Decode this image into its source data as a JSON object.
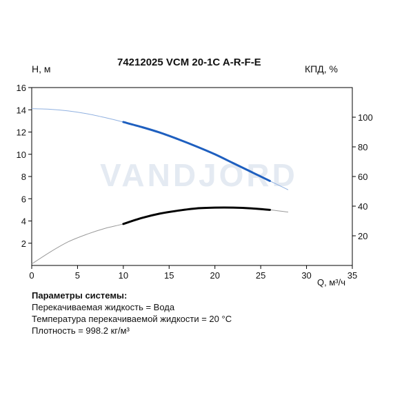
{
  "chart_data": {
    "type": "line",
    "title": "74212025 VCM 20-1C A-R-F-E",
    "ylabel": "H, м",
    "ylabel_right": "КПД, %",
    "xlabel": "Q, м³/ч",
    "xlim": [
      0,
      35
    ],
    "ylim": [
      0,
      16
    ],
    "ylim_right": [
      0,
      120
    ],
    "x_ticks": [
      0,
      5,
      10,
      15,
      20,
      25,
      30,
      35
    ],
    "y_ticks": [
      2,
      4,
      6,
      8,
      10,
      12,
      14,
      16
    ],
    "y_right_ticks": [
      20,
      40,
      60,
      80,
      100
    ],
    "watermark": "VANDJORD",
    "series": [
      {
        "name": "H",
        "axis": "left",
        "color": "#1e5fbf",
        "x": [
          0,
          2,
          4,
          6,
          8,
          10,
          12,
          14,
          16,
          18,
          20,
          22,
          24,
          26,
          28
        ],
        "values": [
          14.1,
          14.05,
          13.9,
          13.65,
          13.3,
          12.9,
          12.45,
          11.95,
          11.35,
          10.7,
          10.0,
          9.2,
          8.4,
          7.6,
          6.8
        ],
        "highlight_range": [
          10,
          26
        ]
      },
      {
        "name": "КПД",
        "axis": "right",
        "color": "#000000",
        "x": [
          0,
          2,
          4,
          6,
          8,
          10,
          12,
          14,
          16,
          18,
          20,
          22,
          24,
          26,
          28
        ],
        "values": [
          1,
          9,
          16,
          21,
          25,
          28,
          32,
          35,
          37,
          38.5,
          39,
          39,
          38.5,
          37.5,
          36
        ],
        "highlight_range": [
          10,
          26
        ]
      }
    ]
  },
  "params": {
    "header": "Параметры системы:",
    "lines": [
      "Перекачиваемая жидкость = Вода",
      "Температура перекачиваемой жидкости = 20 °C",
      "Плотность = 998.2 кг/м³"
    ]
  }
}
